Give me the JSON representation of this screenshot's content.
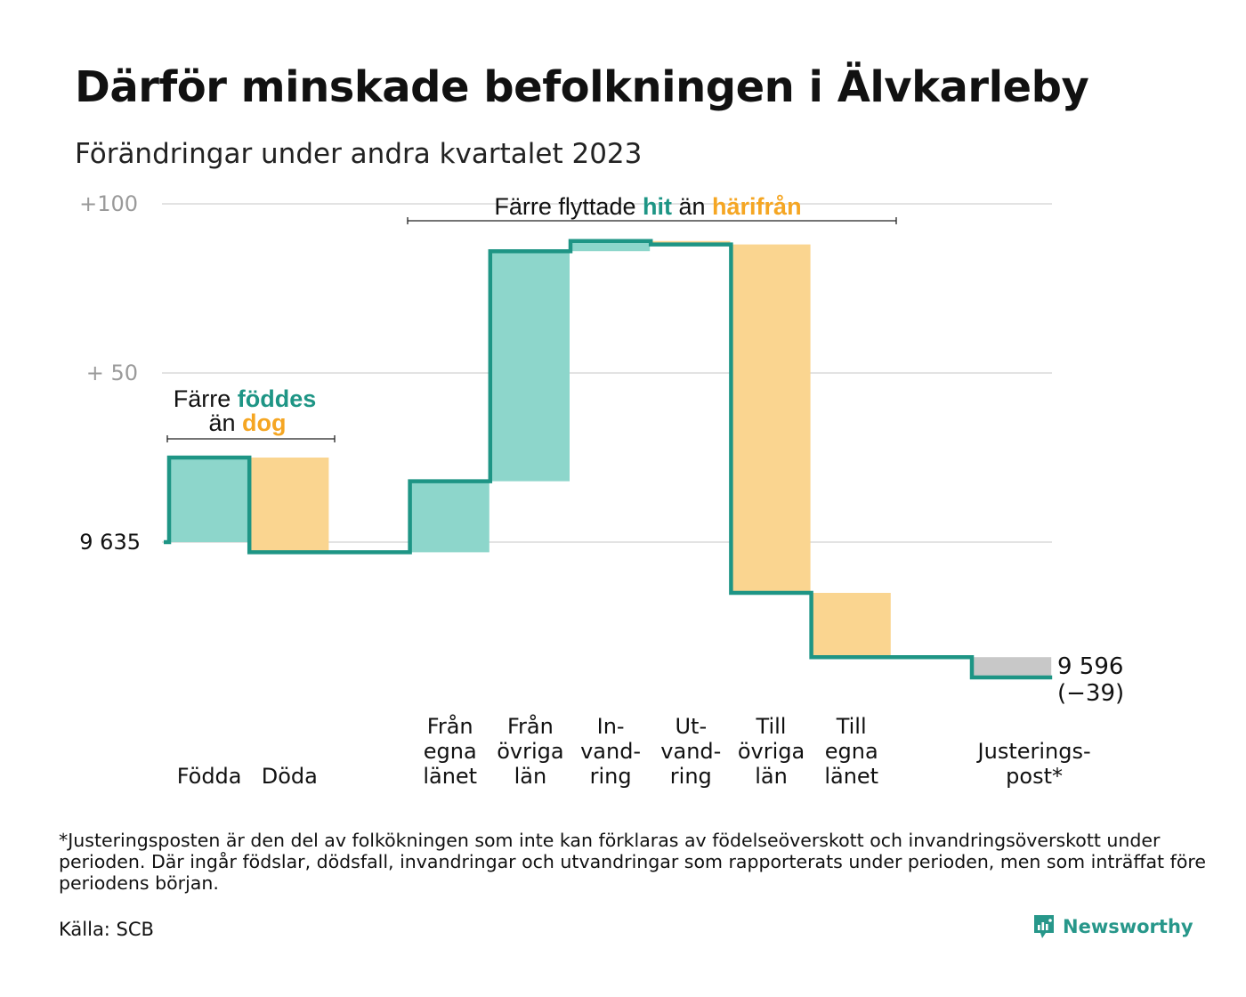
{
  "title": "Därför minskade befolkningen i Älvkarleby",
  "subtitle": "Förändringar under andra kvartalet 2023",
  "footnote": "*Justeringsposten är den del av folkökningen som inte kan förklaras av födelseöverskott och invandringsöverskott under perioden. Där ingår födslar, dödsfall, invandringar och utvandringar som rapporterats under perioden, men som inträffat före periodens början.",
  "source": "Källa: SCB",
  "brand": "Newsworthy",
  "colors": {
    "increase": "#8dd6cb",
    "decrease": "#fad590",
    "adjustment": "#c8c8c8",
    "line": "#1e9585",
    "accent_green": "#1e9585",
    "accent_orange": "#f5a623",
    "grid": "#e3e3e3",
    "tick": "#9a9a9a"
  },
  "chart_data": {
    "type": "waterfall",
    "start_value": 9635,
    "end_value": 9596,
    "baseline_label": "9  635",
    "end_label": "9 596",
    "end_change_label": "(−39)",
    "y_ticks": [
      {
        "value": 9735,
        "label": "+100"
      },
      {
        "value": 9685,
        "label": "+  50"
      }
    ],
    "ylim": [
      9583,
      9742
    ],
    "steps": [
      {
        "label": "Födda",
        "change": 25,
        "kind": "increase",
        "col": 0
      },
      {
        "label": "Döda",
        "change": -28,
        "kind": "decrease",
        "col": 1
      },
      {
        "label": "Från egna länet",
        "lines": [
          "Från",
          "egna",
          "länet"
        ],
        "change": 21,
        "kind": "increase",
        "col": 3
      },
      {
        "label": "Från övriga län",
        "lines": [
          "Från",
          "övriga",
          "län"
        ],
        "change": 68,
        "kind": "increase",
        "col": 4
      },
      {
        "label": "Invandring",
        "lines": [
          "In-",
          "vand-",
          "ring"
        ],
        "change": 3,
        "kind": "increase",
        "col": 5
      },
      {
        "label": "Utvandring",
        "lines": [
          "Ut-",
          "vand-",
          "ring"
        ],
        "change": -1,
        "kind": "decrease",
        "col": 6
      },
      {
        "label": "Till övriga län",
        "lines": [
          "Till",
          "övriga",
          "län"
        ],
        "change": -103,
        "kind": "decrease",
        "col": 7
      },
      {
        "label": "Till egna länet",
        "lines": [
          "Till",
          "egna",
          "länet"
        ],
        "change": -19,
        "kind": "decrease",
        "col": 8
      },
      {
        "label": "Justeringspost*",
        "lines": [
          "Justerings-",
          "post*"
        ],
        "change": -6,
        "kind": "adjustment",
        "col": 10
      }
    ],
    "annotations": [
      {
        "id": "births",
        "parts": [
          "Färre ",
          "föddes"
        ],
        "line2": [
          "än ",
          "dog"
        ]
      },
      {
        "id": "migration",
        "parts": [
          "Färre flyttade ",
          "hit",
          " än ",
          "härifrån"
        ]
      }
    ]
  }
}
